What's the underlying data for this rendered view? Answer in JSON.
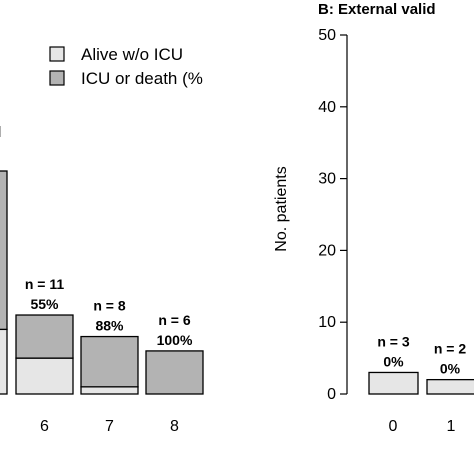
{
  "chart_data": [
    {
      "type": "bar",
      "stacked": true,
      "title": "",
      "categories": [
        "6",
        "7",
        "8"
      ],
      "series": [
        {
          "name": "Alive w/o ICU",
          "values": [
            5,
            1,
            0
          ],
          "color": "#e6e6e6"
        },
        {
          "name": "ICU or death (%",
          "values": [
            6,
            7,
            6
          ],
          "color": "#b3b3b3"
        }
      ],
      "bar_labels": [
        {
          "n": "n = 11",
          "pct": "55%"
        },
        {
          "n": "n = 8",
          "pct": "88%"
        },
        {
          "n": "n = 6",
          "pct": "100%"
        }
      ],
      "partial_bars": [
        {
          "gray_from": 9,
          "light_top": 9
        }
      ],
      "partial_tick": "l",
      "legend_position": "top"
    },
    {
      "type": "bar",
      "stacked": true,
      "title": "B: External valid",
      "ylabel": "No. patients",
      "ylim": [
        0,
        50
      ],
      "yticks": [
        "0",
        "10",
        "20",
        "30",
        "40",
        "50"
      ],
      "categories": [
        "0",
        "1"
      ],
      "series": [
        {
          "name": "Alive w/o ICU",
          "values": [
            3,
            2
          ],
          "color": "#e6e6e6"
        },
        {
          "name": "ICU or death",
          "values": [
            0,
            0
          ],
          "color": "#b3b3b3"
        }
      ],
      "bar_labels": [
        {
          "n": "n = 3",
          "pct": "0%"
        },
        {
          "n": "n = 2",
          "pct": "0%"
        }
      ]
    }
  ]
}
